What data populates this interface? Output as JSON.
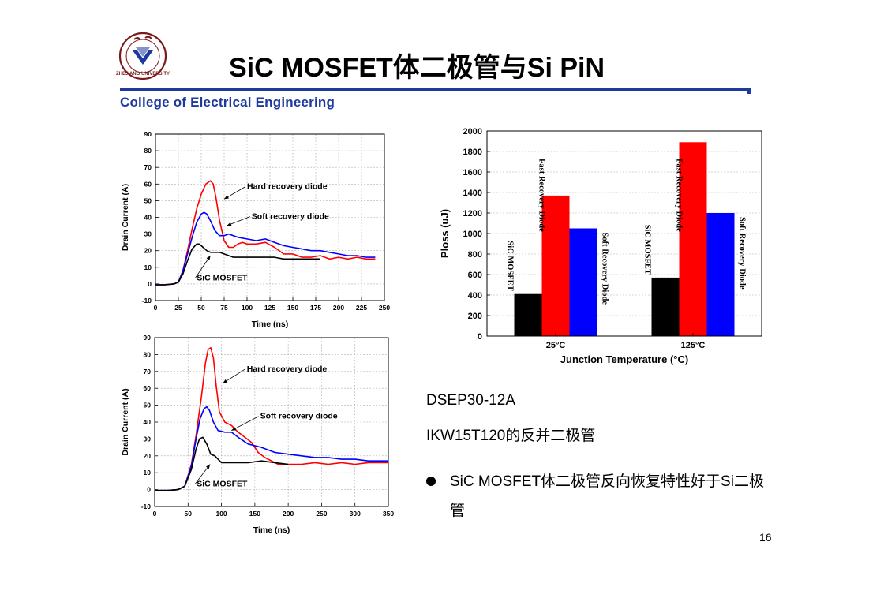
{
  "slide": {
    "title": "SiC MOSFET体二极管与Si PiN",
    "college": "College of Electrical Engineering",
    "logo_text": "ZHEJIANG UNIVERSITY",
    "notes": [
      "DSEP30-12A",
      "IKW15T120的反并二极管"
    ],
    "bullet": "SiC MOSFET体二极管反向恢复特性好于Si二极管",
    "page_number": "16"
  },
  "colors": {
    "accent": "#1f3a9e",
    "red": "#ff0000",
    "blue": "#0000ff",
    "black": "#000000"
  },
  "chart_data": [
    {
      "type": "line",
      "xlabel": "Time (ns)",
      "ylabel": "Drain Current (A)",
      "xlim": [
        0,
        250
      ],
      "ylim": [
        -10,
        90
      ],
      "xticks": [
        0,
        25,
        50,
        75,
        100,
        125,
        150,
        175,
        200,
        225,
        250
      ],
      "yticks": [
        -10,
        0,
        10,
        20,
        30,
        40,
        50,
        60,
        70,
        80,
        90
      ],
      "grid": true,
      "series": [
        {
          "name": "Hard recovery diode",
          "color": "#ff0000",
          "x": [
            0,
            10,
            20,
            25,
            30,
            35,
            40,
            45,
            50,
            55,
            60,
            63,
            66,
            70,
            75,
            80,
            85,
            90,
            95,
            100,
            110,
            120,
            130,
            140,
            150,
            160,
            170,
            180,
            190,
            200,
            210,
            220,
            230,
            240
          ],
          "y": [
            -0.5,
            -0.5,
            0,
            1,
            8,
            20,
            33,
            45,
            54,
            60,
            62,
            60,
            52,
            38,
            26,
            22,
            22,
            24,
            25,
            24,
            24,
            25,
            22,
            18,
            18,
            16,
            16,
            17,
            15,
            16,
            15,
            16,
            15,
            15
          ]
        },
        {
          "name": "Soft recovery diode",
          "color": "#0000ff",
          "x": [
            0,
            10,
            20,
            25,
            30,
            35,
            40,
            45,
            50,
            53,
            56,
            60,
            65,
            70,
            75,
            80,
            85,
            90,
            100,
            110,
            120,
            130,
            140,
            150,
            160,
            170,
            180,
            190,
            200,
            210,
            220,
            230,
            240
          ],
          "y": [
            -0.5,
            -0.5,
            0,
            1,
            8,
            18,
            28,
            37,
            42,
            43,
            42,
            38,
            32,
            29,
            29,
            30,
            29,
            28,
            27,
            26,
            27,
            25,
            23,
            22,
            21,
            20,
            20,
            19,
            18,
            17,
            17,
            16,
            16
          ]
        },
        {
          "name": "SiC MOSFET",
          "color": "#000000",
          "x": [
            0,
            10,
            20,
            25,
            30,
            35,
            40,
            45,
            48,
            52,
            56,
            60,
            65,
            70,
            75,
            80,
            85,
            90,
            95,
            100,
            110,
            120,
            130,
            140,
            150,
            160,
            170,
            180
          ],
          "y": [
            -0.5,
            -0.5,
            0,
            1,
            6,
            14,
            21,
            24,
            24,
            22,
            20,
            19,
            19,
            19,
            18,
            17,
            16,
            16,
            16,
            16,
            16,
            16,
            16,
            15,
            15,
            15,
            15,
            15
          ]
        }
      ],
      "annotations": [
        {
          "text": "Hard recovery diode",
          "x": 100,
          "y": 57,
          "tx": 75,
          "ty": 51
        },
        {
          "text": "Soft recovery diode",
          "x": 105,
          "y": 39,
          "tx": 78,
          "ty": 35
        },
        {
          "text": "SiC MOSFET",
          "x": 45,
          "y": 2,
          "tx": 60,
          "ty": 17
        }
      ]
    },
    {
      "type": "line",
      "xlabel": "Time (ns)",
      "ylabel": "Drain Current (A)",
      "xlim": [
        0,
        350
      ],
      "ylim": [
        -10,
        90
      ],
      "xticks": [
        0,
        50,
        100,
        150,
        200,
        250,
        300,
        350
      ],
      "yticks": [
        -10,
        0,
        10,
        20,
        30,
        40,
        50,
        60,
        70,
        80,
        90
      ],
      "grid": true,
      "series": [
        {
          "name": "Hard recovery diode",
          "color": "#ff0000",
          "x": [
            0,
            20,
            35,
            45,
            55,
            62,
            70,
            76,
            80,
            84,
            88,
            92,
            97,
            105,
            115,
            125,
            135,
            145,
            155,
            165,
            175,
            185,
            200,
            220,
            240,
            260,
            280,
            300,
            320,
            340,
            350
          ],
          "y": [
            -0.5,
            -0.5,
            0,
            2,
            15,
            32,
            55,
            75,
            83,
            84,
            78,
            62,
            46,
            40,
            38,
            34,
            31,
            28,
            22,
            19,
            17,
            15,
            15,
            15,
            16,
            15,
            16,
            15,
            16,
            16,
            16
          ]
        },
        {
          "name": "Soft recovery diode",
          "color": "#0000ff",
          "x": [
            0,
            20,
            35,
            45,
            55,
            62,
            68,
            74,
            78,
            82,
            88,
            95,
            105,
            115,
            125,
            140,
            160,
            180,
            200,
            220,
            240,
            260,
            280,
            300,
            320,
            340,
            350
          ],
          "y": [
            -0.5,
            -0.5,
            0,
            2,
            14,
            30,
            42,
            48,
            49,
            47,
            40,
            35,
            34,
            34,
            31,
            27,
            25,
            22,
            21,
            20,
            19,
            19,
            18,
            18,
            17,
            17,
            17
          ]
        },
        {
          "name": "SiC MOSFET",
          "color": "#000000",
          "x": [
            0,
            20,
            35,
            45,
            55,
            62,
            67,
            72,
            78,
            84,
            90,
            95,
            100,
            105,
            110,
            120,
            140,
            160,
            180,
            200
          ],
          "y": [
            -0.5,
            -0.5,
            0,
            2,
            12,
            24,
            30,
            31,
            27,
            21,
            20,
            18,
            16,
            16,
            16,
            16,
            16,
            17,
            16,
            15
          ]
        }
      ],
      "annotations": [
        {
          "text": "Hard recovery diode",
          "x": 138,
          "y": 70,
          "tx": 102,
          "ty": 63
        },
        {
          "text": "Soft recovery diode",
          "x": 158,
          "y": 42,
          "tx": 115,
          "ty": 35
        },
        {
          "text": "SiC MOSFET",
          "x": 63,
          "y": 2,
          "tx": 83,
          "ty": 15
        }
      ]
    },
    {
      "type": "bar",
      "xlabel": "Junction Temperature (°C)",
      "ylabel": "Ploss (uJ)",
      "categories": [
        "25°C",
        "125°C"
      ],
      "ylim": [
        0,
        2000
      ],
      "yticks": [
        0,
        200,
        400,
        600,
        800,
        1000,
        1200,
        1400,
        1600,
        1800,
        2000
      ],
      "grid": true,
      "series": [
        {
          "name": "SiC MOSFET",
          "color": "#000000",
          "values": [
            410,
            570
          ]
        },
        {
          "name": "Fast Recovery Diode",
          "color": "#ff0000",
          "values": [
            1370,
            1890
          ]
        },
        {
          "name": "Soft Recovery Diode",
          "color": "#0000ff",
          "values": [
            1050,
            1200
          ]
        }
      ]
    }
  ]
}
